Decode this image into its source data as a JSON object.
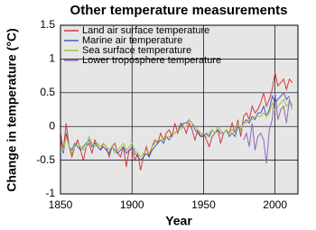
{
  "chart_data": {
    "type": "line",
    "title": "Other temperature measurements",
    "x_label": "Year",
    "y_label": "Change in temperature (°C)",
    "x": [
      1850,
      1852,
      1854,
      1856,
      1858,
      1860,
      1862,
      1864,
      1866,
      1868,
      1870,
      1872,
      1874,
      1876,
      1878,
      1880,
      1882,
      1884,
      1886,
      1888,
      1890,
      1892,
      1894,
      1896,
      1898,
      1900,
      1902,
      1904,
      1906,
      1908,
      1910,
      1912,
      1914,
      1916,
      1918,
      1920,
      1922,
      1924,
      1926,
      1928,
      1930,
      1932,
      1934,
      1936,
      1938,
      1940,
      1942,
      1944,
      1946,
      1948,
      1950,
      1952,
      1954,
      1956,
      1958,
      1960,
      1962,
      1964,
      1966,
      1968,
      1970,
      1972,
      1974,
      1976,
      1978,
      1980,
      1982,
      1984,
      1986,
      1988,
      1990,
      1992,
      1994,
      1996,
      1998,
      2000,
      2002,
      2004,
      2006,
      2008,
      2010,
      2012
    ],
    "series": [
      {
        "name": "Land air surface temperature",
        "color": "#d43a3a",
        "values": [
          -0.1,
          -0.35,
          0.05,
          -0.3,
          -0.45,
          -0.3,
          -0.2,
          -0.35,
          -0.5,
          -0.3,
          -0.25,
          -0.4,
          -0.2,
          -0.3,
          -0.35,
          -0.25,
          -0.3,
          -0.45,
          -0.3,
          -0.25,
          -0.4,
          -0.45,
          -0.3,
          -0.6,
          -0.35,
          -0.35,
          -0.5,
          -0.4,
          -0.65,
          -0.45,
          -0.3,
          -0.45,
          -0.3,
          -0.2,
          -0.25,
          -0.1,
          -0.2,
          -0.1,
          -0.05,
          -0.15,
          0.05,
          -0.1,
          0.05,
          0,
          -0.1,
          0.05,
          -0.05,
          -0.2,
          -0.05,
          -0.15,
          -0.1,
          -0.2,
          -0.3,
          -0.15,
          -0.1,
          -0.05,
          -0.25,
          -0.1,
          -0.05,
          -0.1,
          0.05,
          -0.1,
          0.1,
          -0.15,
          0.15,
          0.2,
          0.1,
          0.3,
          0.2,
          0.25,
          0.35,
          0.5,
          0.3,
          0.4,
          0.55,
          0.8,
          0.6,
          0.65,
          0.7,
          0.55,
          0.7,
          0.65
        ]
      },
      {
        "name": "Marine air temperature",
        "color": "#3f62c4",
        "values": [
          -0.2,
          -0.4,
          -0.1,
          -0.3,
          -0.35,
          -0.25,
          -0.3,
          -0.35,
          -0.3,
          -0.25,
          -0.2,
          -0.3,
          -0.25,
          -0.3,
          -0.35,
          -0.3,
          -0.35,
          -0.4,
          -0.3,
          -0.35,
          -0.4,
          -0.35,
          -0.3,
          -0.4,
          -0.35,
          -0.3,
          -0.4,
          -0.45,
          -0.5,
          -0.45,
          -0.4,
          -0.45,
          -0.35,
          -0.3,
          -0.25,
          -0.2,
          -0.25,
          -0.15,
          -0.2,
          -0.1,
          -0.1,
          -0.05,
          0,
          0.05,
          0.05,
          0.1,
          0.05,
          -0.05,
          -0.1,
          -0.15,
          -0.15,
          -0.1,
          -0.15,
          -0.05,
          -0.1,
          -0.05,
          -0.1,
          -0.1,
          -0.05,
          -0.15,
          -0.1,
          -0.15,
          0,
          -0.05,
          0.05,
          0.1,
          0.05,
          0.15,
          0.1,
          0.2,
          0.2,
          0.3,
          0.15,
          0.25,
          0.45,
          0.35,
          0.4,
          0.45,
          0.5,
          0.4,
          0.45,
          null
        ]
      },
      {
        "name": "Sea surface temperature",
        "color": "#a6c436",
        "values": [
          -0.25,
          -0.35,
          -0.15,
          -0.3,
          -0.4,
          -0.3,
          -0.25,
          -0.3,
          -0.35,
          -0.3,
          -0.15,
          -0.25,
          -0.3,
          -0.25,
          -0.3,
          -0.25,
          -0.3,
          -0.35,
          -0.3,
          -0.4,
          -0.35,
          -0.3,
          -0.25,
          -0.35,
          -0.3,
          -0.25,
          -0.35,
          -0.4,
          -0.45,
          -0.4,
          -0.35,
          -0.4,
          -0.3,
          -0.25,
          -0.2,
          -0.2,
          -0.2,
          -0.15,
          -0.15,
          -0.1,
          -0.1,
          -0.05,
          -0.05,
          0,
          0,
          0.1,
          0.05,
          0,
          -0.05,
          -0.1,
          -0.1,
          -0.15,
          -0.1,
          -0.05,
          -0.1,
          0,
          -0.05,
          -0.1,
          -0.05,
          -0.1,
          -0.05,
          -0.1,
          0.05,
          -0.05,
          0.05,
          0.05,
          0.1,
          0.1,
          0.15,
          0.15,
          0.15,
          0.2,
          0.15,
          0.2,
          0.35,
          0.25,
          0.3,
          0.35,
          0.4,
          0.3,
          0.35,
          0.25
        ]
      },
      {
        "name": "Lower troposphere temperature",
        "color": "#9466b8",
        "values": [
          null,
          null,
          null,
          null,
          null,
          null,
          null,
          null,
          null,
          null,
          null,
          null,
          null,
          null,
          null,
          null,
          null,
          null,
          null,
          null,
          null,
          null,
          null,
          null,
          null,
          null,
          null,
          null,
          null,
          null,
          null,
          null,
          null,
          null,
          null,
          null,
          null,
          null,
          null,
          null,
          null,
          null,
          null,
          null,
          null,
          null,
          null,
          null,
          null,
          null,
          null,
          null,
          null,
          null,
          null,
          null,
          null,
          null,
          null,
          null,
          null,
          null,
          null,
          null,
          -0.2,
          -0.1,
          -0.3,
          0.05,
          -0.35,
          -0.15,
          -0.1,
          -0.2,
          -0.55,
          -0.05,
          0.1,
          0.5,
          0.1,
          0.25,
          0.3,
          0.05,
          0.4,
          0.3
        ]
      }
    ],
    "xlim": [
      1850,
      2016
    ],
    "xticks": [
      1850,
      1900,
      1950,
      2000
    ],
    "ylim": [
      -1,
      1.5
    ],
    "yticks": [
      -1,
      -0.5,
      0,
      0.5,
      1,
      1.5
    ],
    "grid": true,
    "legend": "upper left"
  }
}
